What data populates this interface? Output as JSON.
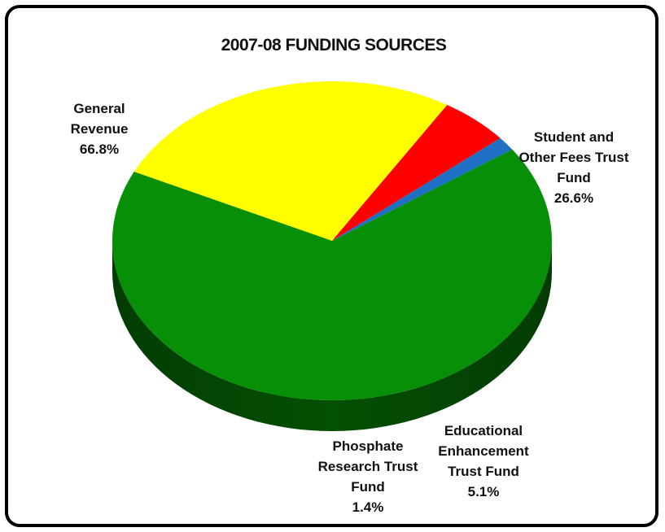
{
  "chart_data": {
    "type": "pie",
    "title": "2007-08 FUNDING SOURCES",
    "slices": [
      {
        "label_lines": [
          "General",
          "Revenue",
          "66.8%"
        ],
        "value": 66.8,
        "color": "#079007",
        "side_color": "#045004"
      },
      {
        "label_lines": [
          "Student and",
          "Other Fees Trust",
          "Fund",
          "26.6%"
        ],
        "value": 26.6,
        "color": "#ffff00",
        "side_color": "#77770a"
      },
      {
        "label_lines": [
          "Educational",
          "Enhancement",
          "Trust Fund",
          "5.1%"
        ],
        "value": 5.1,
        "color": "#ff0000",
        "side_color": "#7a0000"
      },
      {
        "label_lines": [
          "Phosphate",
          "Research Trust",
          "Fund",
          "1.4%"
        ],
        "value": 1.4,
        "color": "#1f6fc4",
        "side_color": "#0d2f60"
      }
    ]
  }
}
